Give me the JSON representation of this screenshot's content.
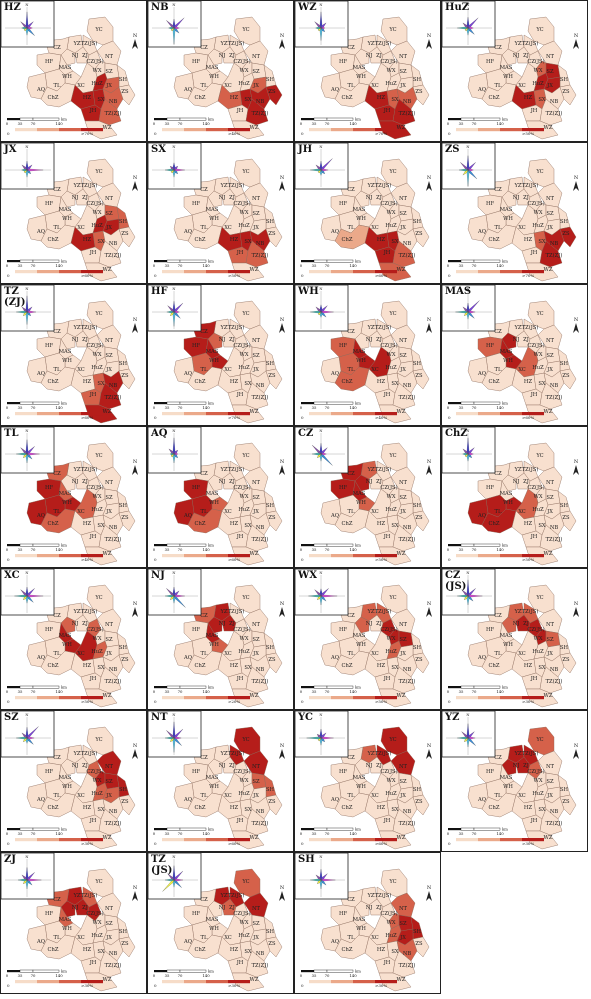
{
  "figure": {
    "colors": {
      "base": "#f8e0cf",
      "legend_ramp": [
        "#f6dcc8",
        "#eba98a",
        "#d5614a",
        "#b51d1a"
      ],
      "rose_palette": [
        "#2323c8",
        "#6a2bd8",
        "#d92bd6",
        "#1f7fd6",
        "#39c0ea",
        "#f4f42a",
        "#20b0a8",
        "#7a3aa0"
      ],
      "border": "#8a6a5a",
      "label": "#222222"
    },
    "scale": {
      "ticks": [
        "0",
        "35",
        "70",
        "140"
      ],
      "unit": "km"
    },
    "legend_zero": "0",
    "north": "N",
    "panels": [
      {
        "id": "HZ",
        "label": "HZ",
        "legend_max": ">70%",
        "rose": [
          0.9,
          0.5,
          0.3,
          0.6,
          0.4,
          0.2,
          0.3,
          0.5
        ]
      },
      {
        "id": "NB",
        "label": "NB",
        "legend_max": ">40%",
        "rose": [
          0.5,
          0.8,
          0.3,
          0.4,
          0.9,
          0.2,
          0.3,
          0.6
        ]
      },
      {
        "id": "WZ",
        "label": "WZ",
        "legend_max": ">70%",
        "rose": [
          0.9,
          0.4,
          0.2,
          0.3,
          0.7,
          0.2,
          0.3,
          0.5
        ]
      },
      {
        "id": "HuZ",
        "label": "HuZ",
        "legend_max": ">50%",
        "rose": [
          0.6,
          0.8,
          0.3,
          0.5,
          0.4,
          0.2,
          0.6,
          0.4
        ]
      },
      {
        "id": "JX",
        "label": "JX",
        "legend_max": ">60%",
        "rose": [
          0.5,
          0.4,
          0.9,
          0.3,
          0.4,
          0.2,
          0.3,
          0.4
        ]
      },
      {
        "id": "SX",
        "label": "SX",
        "legend_max": ">50%",
        "rose": [
          0.4,
          0.3,
          0.6,
          0.3,
          0.4,
          0.2,
          0.5,
          0.3
        ]
      },
      {
        "id": "JH",
        "label": "JH",
        "legend_max": ">60%",
        "rose": [
          0.5,
          0.9,
          0.4,
          0.3,
          0.3,
          0.2,
          0.6,
          0.4
        ]
      },
      {
        "id": "ZS",
        "label": "ZS",
        "legend_max": ">70%",
        "rose": [
          0.8,
          0.6,
          0.3,
          0.7,
          0.9,
          0.4,
          0.5,
          0.6
        ]
      },
      {
        "id": "TZZJ",
        "label": "TZ\n(ZJ)",
        "legend_max": ">60%",
        "rose": [
          0.9,
          0.4,
          0.5,
          0.3,
          0.7,
          0.3,
          0.6,
          0.4
        ]
      },
      {
        "id": "HF",
        "label": "HF",
        "legend_max": ">70%",
        "rose": [
          0.6,
          0.7,
          0.3,
          0.5,
          0.8,
          0.3,
          0.4,
          0.5
        ]
      },
      {
        "id": "WH",
        "label": "WH",
        "legend_max": ">40%",
        "rose": [
          0.4,
          0.5,
          0.7,
          0.4,
          0.3,
          0.2,
          0.6,
          0.4
        ]
      },
      {
        "id": "MAS",
        "label": "MAS",
        "legend_max": ">60%",
        "rose": [
          0.5,
          0.9,
          0.4,
          0.5,
          0.4,
          0.3,
          0.7,
          0.4
        ]
      },
      {
        "id": "TL",
        "label": "TL",
        "legend_max": ">40%",
        "rose": [
          0.8,
          0.6,
          0.7,
          0.4,
          0.5,
          0.3,
          0.6,
          0.5
        ]
      },
      {
        "id": "AQ",
        "label": "AQ",
        "legend_max": ">60%",
        "rose": [
          0.9,
          0.3,
          0.2,
          0.3,
          0.5,
          0.2,
          0.2,
          0.4
        ]
      },
      {
        "id": "CZ",
        "label": "CZ",
        "legend_max": ">50%",
        "rose": [
          0.6,
          0.5,
          0.3,
          0.9,
          0.4,
          0.3,
          0.5,
          0.7
        ]
      },
      {
        "id": "ChZ",
        "label": "ChZ",
        "legend_max": ">50%",
        "rose": [
          0.9,
          0.5,
          0.3,
          0.3,
          0.4,
          0.2,
          0.3,
          0.4
        ]
      },
      {
        "id": "XC",
        "label": "XC",
        "legend_max": ">50%",
        "rose": [
          0.5,
          0.6,
          0.9,
          0.5,
          0.4,
          0.3,
          0.7,
          0.5
        ]
      },
      {
        "id": "NJ",
        "label": "NJ",
        "legend_max": ">20%",
        "rose": [
          0.5,
          0.4,
          0.6,
          0.9,
          0.4,
          0.3,
          0.5,
          0.6
        ]
      },
      {
        "id": "WX",
        "label": "WX",
        "legend_max": ">50%",
        "rose": [
          0.4,
          0.6,
          0.9,
          0.4,
          0.5,
          0.3,
          0.7,
          0.5
        ]
      },
      {
        "id": "CZJS",
        "label": "CZ\n(JS)",
        "legend_max": ">30%",
        "rose": [
          0.9,
          0.6,
          0.8,
          0.4,
          0.5,
          0.3,
          0.6,
          0.5
        ]
      },
      {
        "id": "SZ",
        "label": "SZ",
        "legend_max": ">30%",
        "rose": [
          0.6,
          0.9,
          0.4,
          0.5,
          0.3,
          0.3,
          0.6,
          0.4
        ]
      },
      {
        "id": "NT",
        "label": "NT",
        "legend_max": ">60%",
        "rose": [
          0.9,
          0.7,
          0.4,
          0.6,
          0.8,
          0.3,
          0.5,
          0.6
        ]
      },
      {
        "id": "YC",
        "label": "YC",
        "legend_max": ">60%",
        "rose": [
          0.5,
          0.4,
          0.7,
          0.3,
          0.4,
          0.2,
          0.8,
          0.3
        ]
      },
      {
        "id": "YZ",
        "label": "YZ",
        "legend_max": ">30%",
        "rose": [
          0.8,
          0.5,
          0.4,
          0.6,
          0.5,
          0.3,
          0.6,
          0.5
        ]
      },
      {
        "id": "ZJ",
        "label": "ZJ",
        "legend_max": ">30%",
        "rose": [
          0.7,
          0.6,
          0.8,
          0.4,
          0.5,
          0.3,
          0.5,
          0.4
        ]
      },
      {
        "id": "TZJS",
        "label": "TZ\n(JS)",
        "legend_max": ">30%",
        "rose": [
          0.8,
          0.7,
          0.5,
          0.6,
          0.4,
          0.9,
          0.5,
          0.5
        ]
      },
      {
        "id": "SH",
        "label": "SH",
        "legend_max": ">30%",
        "rose": [
          0.6,
          0.5,
          0.8,
          0.4,
          0.5,
          0.3,
          0.6,
          0.4
        ]
      }
    ],
    "city_labels": [
      {
        "t": "YC"
      },
      {
        "t": "YZ"
      },
      {
        "t": "TZ(JS)"
      },
      {
        "t": "NT"
      },
      {
        "t": "CZ"
      },
      {
        "t": "NJ"
      },
      {
        "t": "ZJ"
      },
      {
        "t": "CZ(JS)"
      },
      {
        "t": "HF"
      },
      {
        "t": "MAS"
      },
      {
        "t": "WX"
      },
      {
        "t": "SZ"
      },
      {
        "t": "SH"
      },
      {
        "t": "WH"
      },
      {
        "t": "TL"
      },
      {
        "t": "XC"
      },
      {
        "t": "HuZ"
      },
      {
        "t": "JX"
      },
      {
        "t": "AQ"
      },
      {
        "t": "ChZ"
      },
      {
        "t": "HZ"
      },
      {
        "t": "SX"
      },
      {
        "t": "NB"
      },
      {
        "t": "ZS"
      },
      {
        "t": "JH"
      },
      {
        "t": "TZ(ZJ)"
      },
      {
        "t": "WZ"
      }
    ],
    "highlight_map": {
      "HZ": {
        "HZ": 4,
        "HuZ": 3,
        "SX": 3,
        "JX": 2,
        "JH": 3,
        "NB": 2,
        "TZ(ZJ)": 2
      },
      "NB": {
        "NB": 4,
        "ZS": 4,
        "SX": 3,
        "TZ(ZJ)": 3,
        "HZ": 2,
        "JX": 2
      },
      "WZ": {
        "WZ": 4,
        "TZ(ZJ)": 3,
        "JH": 3,
        "HZ": 3,
        "SX": 2,
        "NB": 2
      },
      "HuZ": {
        "HuZ": 4,
        "HZ": 3,
        "JX": 3,
        "SZ": 3,
        "WX": 2,
        "SX": 2
      },
      "JX": {
        "JX": 4,
        "HZ": 3,
        "HuZ": 3,
        "SX": 2,
        "SH": 2,
        "SZ": 2
      },
      "SX": {
        "SX": 4,
        "HZ": 3,
        "NB": 3,
        "JH": 2,
        "TZ(ZJ)": 2
      },
      "JH": {
        "JH": 4,
        "HZ": 3,
        "SX": 3,
        "WZ": 2,
        "TZ(ZJ)": 2,
        "ChZ": 1
      },
      "ZS": {
        "ZS": 4,
        "NB": 3,
        "TZ(ZJ)": 3,
        "SX": 2
      },
      "TZZJ": {
        "TZ(ZJ)": 4,
        "WZ": 3,
        "NB": 3,
        "SX": 2,
        "JH": 2
      },
      "HF": {
        "HF": 4,
        "MAS": 3,
        "CZ": 3,
        "WH": 3,
        "NJ": 2,
        "TL": 2
      },
      "WH": {
        "WH": 4,
        "MAS": 3,
        "XC": 3,
        "TL": 2,
        "HF": 2,
        "ChZ": 2
      },
      "MAS": {
        "MAS": 4,
        "NJ": 3,
        "WH": 3,
        "HF": 2,
        "XC": 2
      },
      "TL": {
        "TL": 4,
        "HF": 3,
        "AQ": 3,
        "WH": 3,
        "ChZ": 2,
        "CZ": 2,
        "MAS": 2,
        "XC": 2
      },
      "AQ": {
        "AQ": 4,
        "HF": 3,
        "TL": 3,
        "ChZ": 2,
        "WH": 2
      },
      "CZ": {
        "CZ": 4,
        "HF": 3,
        "NJ": 3,
        "MAS": 3,
        "YZ": 2,
        "WH": 2
      },
      "ChZ": {
        "ChZ": 4,
        "TL": 3,
        "AQ": 3,
        "WH": 3,
        "XC": 2
      },
      "XC": {
        "XC": 4,
        "WH": 3,
        "MAS": 3,
        "HuZ": 2,
        "NJ": 2,
        "CZ(JS)": 2
      },
      "NJ": {
        "NJ": 4,
        "MAS": 3,
        "ZJ": 3,
        "YZ": 3,
        "CZ": 2,
        "WH": 2
      },
      "WX": {
        "WX": 4,
        "SZ": 3,
        "CZ(JS)": 3,
        "YZ": 2,
        "NJ": 2,
        "TZ(JS)": 2,
        "HuZ": 2
      },
      "CZJS": {
        "CZ(JS)": 4,
        "WX": 3,
        "ZJ": 3,
        "NJ": 2,
        "YZ": 2,
        "TZ(JS)": 2,
        "SZ": 2
      },
      "SZ": {
        "SZ": 4,
        "WX": 3,
        "SH": 3,
        "NT": 3,
        "CZ(JS)": 2,
        "JX": 2,
        "HuZ": 2
      },
      "NT": {
        "NT": 4,
        "YC": 3,
        "TZ(JS)": 3,
        "SZ": 2,
        "SH": 2
      },
      "YC": {
        "YC": 4,
        "TZ(JS)": 3,
        "NT": 3,
        "YZ": 2
      },
      "YZ": {
        "YZ": 4,
        "TZ(JS)": 3,
        "ZJ": 3,
        "NJ": 3,
        "YC": 2,
        "CZ(JS)": 2
      },
      "ZJ": {
        "ZJ": 4,
        "NJ": 3,
        "YZ": 3,
        "CZ(JS)": 3,
        "TZ(JS)": 2,
        "CZ": 2,
        "MAS": 2
      },
      "TZJS": {
        "TZ(JS)": 4,
        "YZ": 3,
        "NT": 3,
        "YC": 2,
        "ZJ": 2
      },
      "SH": {
        "SH": 4,
        "SZ": 3,
        "JX": 3,
        "NT": 2,
        "WX": 2,
        "HuZ": 2,
        "NB": 2
      }
    }
  }
}
